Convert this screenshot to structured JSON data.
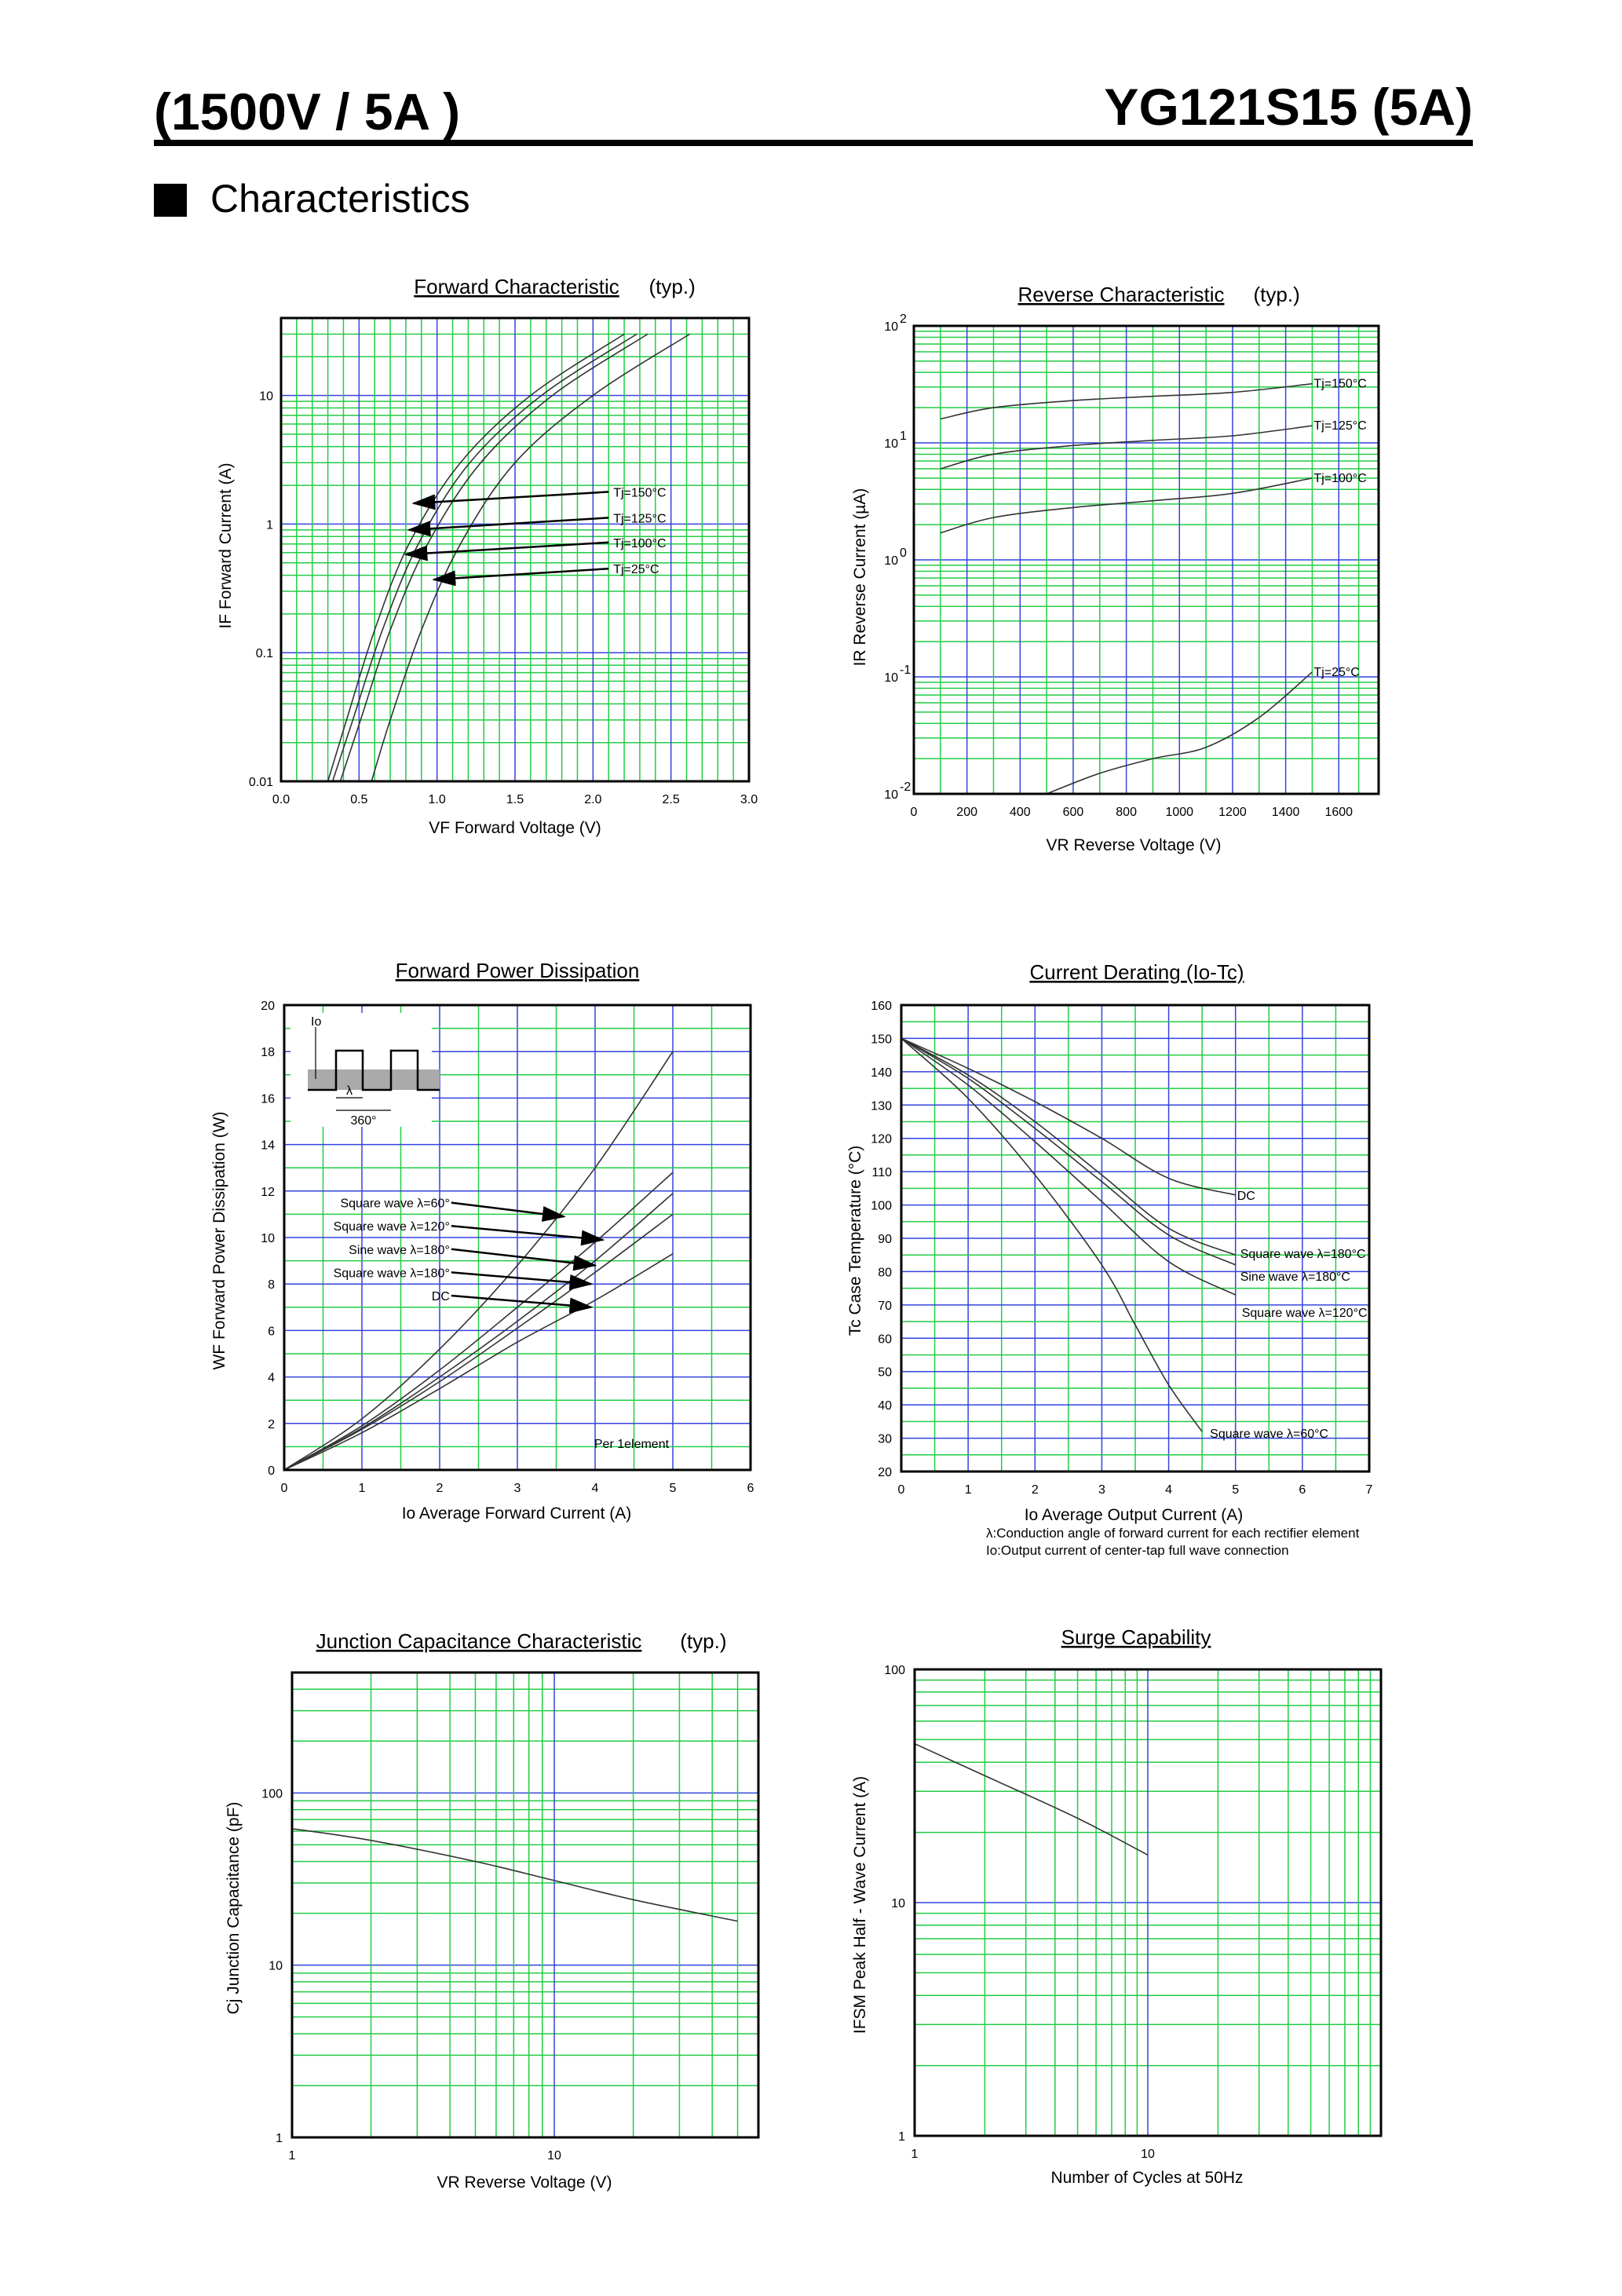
{
  "header": {
    "rating": "(1500V / 5A )",
    "part_number": "YG121S15 (5A)",
    "section_title": "Characteristics"
  },
  "colors": {
    "grid_major": "#3344dd",
    "grid_minor": "#22cc44",
    "curve": "#333333",
    "frame": "#000000"
  },
  "chart_data": [
    {
      "id": "forward",
      "type": "line",
      "title": "Forward Characteristic",
      "title_suffix": "(typ.)",
      "xlabel": "VF   Forward Voltage  (V)",
      "ylabel": "IF   Forward Current  (A)",
      "xscale": "linear",
      "yscale": "log",
      "xlim": [
        0,
        3.0
      ],
      "ylim": [
        0.01,
        40
      ],
      "xticks": [
        0,
        0.5,
        1.0,
        1.5,
        2.0,
        2.5,
        3.0
      ],
      "xtick_labels": [
        "0.0",
        "0.5",
        "1.0",
        "1.5",
        "2.0",
        "2.5",
        "3.0"
      ],
      "yticks": [
        0.01,
        0.1,
        1,
        10
      ],
      "ytick_labels": [
        "0.01",
        "0.1",
        "1",
        "10"
      ],
      "series": [
        {
          "name": "Tj=150°C",
          "x": [
            0.3,
            0.42,
            0.6,
            0.82,
            1.15,
            1.6,
            2.2
          ],
          "y": [
            0.01,
            0.03,
            0.15,
            0.7,
            3,
            10,
            30
          ]
        },
        {
          "name": "Tj=125°C",
          "x": [
            0.33,
            0.46,
            0.65,
            0.88,
            1.21,
            1.67,
            2.28
          ],
          "y": [
            0.01,
            0.03,
            0.15,
            0.7,
            3,
            10,
            30
          ]
        },
        {
          "name": "Tj=100°C",
          "x": [
            0.38,
            0.51,
            0.7,
            0.94,
            1.28,
            1.74,
            2.35
          ],
          "y": [
            0.01,
            0.03,
            0.15,
            0.7,
            3,
            10,
            30
          ]
        },
        {
          "name": "Tj=25°C",
          "x": [
            0.58,
            0.7,
            0.9,
            1.15,
            1.5,
            2.0,
            2.62
          ],
          "y": [
            0.01,
            0.03,
            0.15,
            0.7,
            3,
            10,
            30
          ]
        }
      ],
      "annotations": [
        {
          "text": "Tj=150°C",
          "from": [
            2.1,
            1.78
          ],
          "to": [
            0.85,
            1.45
          ]
        },
        {
          "text": "Tj=125°C",
          "from": [
            2.1,
            1.12
          ],
          "to": [
            0.82,
            0.9
          ]
        },
        {
          "text": "Tj=100°C",
          "from": [
            2.1,
            0.72
          ],
          "to": [
            0.8,
            0.58
          ]
        },
        {
          "text": "Tj=25°C",
          "from": [
            2.1,
            0.45
          ],
          "to": [
            0.98,
            0.37
          ]
        }
      ],
      "grid": true
    },
    {
      "id": "reverse",
      "type": "line",
      "title": "Reverse Characteristic",
      "title_suffix": "(typ.)",
      "xlabel": "VR   Reverse Voltage    (V)",
      "ylabel": "IR   Reverse Current  (µA)",
      "xscale": "linear",
      "yscale": "log",
      "xlim": [
        0,
        1750
      ],
      "ylim": [
        0.01,
        100
      ],
      "xticks": [
        0,
        200,
        400,
        600,
        800,
        1000,
        1200,
        1400,
        1600
      ],
      "xtick_labels": [
        "0",
        "200",
        "400",
        "600",
        "800",
        "1000",
        "1200",
        "1400",
        "1600"
      ],
      "yticks": [
        0.01,
        0.1,
        1,
        10,
        100
      ],
      "ytick_labels_base": [
        "10",
        "10",
        "10",
        "10",
        "10"
      ],
      "ytick_labels_exp": [
        "-2",
        "-1",
        "0",
        "1",
        "2"
      ],
      "series": [
        {
          "name": "Tj=150°C",
          "x": [
            100,
            300,
            600,
            900,
            1200,
            1500
          ],
          "y": [
            16,
            20,
            23,
            25,
            27,
            32
          ]
        },
        {
          "name": "Tj=125°C",
          "x": [
            100,
            300,
            600,
            900,
            1200,
            1500
          ],
          "y": [
            6,
            8,
            9.5,
            10.5,
            11.5,
            14
          ]
        },
        {
          "name": "Tj=100°C",
          "x": [
            100,
            300,
            600,
            900,
            1200,
            1500
          ],
          "y": [
            1.7,
            2.3,
            2.8,
            3.2,
            3.7,
            5
          ]
        },
        {
          "name": "Tj=25°C",
          "x": [
            500,
            700,
            900,
            1100,
            1300,
            1500
          ],
          "y": [
            0.01,
            0.015,
            0.02,
            0.025,
            0.045,
            0.11
          ]
        }
      ],
      "labels": [
        "Tj=150°C",
        "Tj=125°C",
        "Tj=100°C",
        "Tj=25°C"
      ],
      "grid": true
    },
    {
      "id": "power",
      "type": "line",
      "title": "Forward Power Dissipation",
      "xlabel": "Io    Average Forward Current      (A)",
      "ylabel": "WF    Forward Power Dissipation    (W)",
      "xscale": "linear",
      "yscale": "linear",
      "xlim": [
        0,
        6
      ],
      "ylim": [
        0,
        20
      ],
      "xticks": [
        0,
        1,
        2,
        3,
        4,
        5,
        6
      ],
      "yticks": [
        0,
        2,
        4,
        6,
        8,
        10,
        12,
        14,
        16,
        18,
        20
      ],
      "series": [
        {
          "name": "Square wave λ=60°",
          "x": [
            0,
            1,
            2,
            3,
            4,
            5
          ],
          "y": [
            0,
            2.2,
            5.2,
            8.8,
            13,
            18
          ]
        },
        {
          "name": "Square wave λ=120°",
          "x": [
            0,
            1,
            2,
            3,
            4,
            5
          ],
          "y": [
            0,
            1.9,
            4.3,
            7,
            9.8,
            12.8
          ]
        },
        {
          "name": "Sine wave λ=180°",
          "x": [
            0,
            1,
            2,
            3,
            4,
            5
          ],
          "y": [
            0,
            1.8,
            4,
            6.4,
            9,
            11.9
          ]
        },
        {
          "name": "Square wave λ=180°",
          "x": [
            0,
            1,
            2,
            3,
            4,
            5
          ],
          "y": [
            0,
            1.75,
            3.8,
            6.1,
            8.5,
            11
          ]
        },
        {
          "name": "DC",
          "x": [
            0,
            1,
            2,
            3,
            4,
            5
          ],
          "y": [
            0,
            1.6,
            3.5,
            5.5,
            7.3,
            9.3
          ]
        }
      ],
      "annotations": [
        {
          "text": "Square wave λ=60°",
          "from": [
            2.15,
            11.5
          ],
          "to": [
            3.6,
            10.9
          ]
        },
        {
          "text": "Square wave λ=120°",
          "from": [
            2.15,
            10.5
          ],
          "to": [
            4.1,
            9.9
          ]
        },
        {
          "text": "Sine wave λ=180°",
          "from": [
            2.15,
            9.5
          ],
          "to": [
            4.0,
            8.8
          ]
        },
        {
          "text": "Square wave λ=180°",
          "from": [
            2.15,
            8.5
          ],
          "to": [
            3.95,
            8.0
          ]
        },
        {
          "text": "DC",
          "from": [
            2.15,
            7.5
          ],
          "to": [
            3.95,
            7.0
          ]
        }
      ],
      "inset": {
        "io_label": "Io",
        "lambda_label": "λ",
        "period_label": "360°"
      },
      "note": "Per 1element",
      "grid": true
    },
    {
      "id": "derating",
      "type": "line",
      "title": "Current Derating  (Io-Tc)",
      "xlabel": "Io    Average Output Current     (A)",
      "ylabel": "Tc    Case Temperature      (°C)",
      "xscale": "linear",
      "yscale": "linear",
      "xlim": [
        0,
        7
      ],
      "ylim": [
        20,
        160
      ],
      "xticks": [
        0,
        1,
        2,
        3,
        4,
        5,
        6,
        7
      ],
      "yticks": [
        20,
        30,
        40,
        50,
        60,
        70,
        80,
        90,
        100,
        110,
        120,
        130,
        140,
        150,
        160
      ],
      "series": [
        {
          "name": "DC",
          "x": [
            0,
            1,
            2,
            3,
            4,
            5
          ],
          "y": [
            150,
            141,
            131,
            120,
            108,
            103
          ]
        },
        {
          "name": "Square wave λ=180°",
          "x": [
            0,
            1,
            2,
            3,
            4,
            5
          ],
          "y": [
            150,
            139,
            125,
            109,
            93,
            85
          ]
        },
        {
          "name": "Sine wave λ=180°",
          "x": [
            0,
            1,
            2,
            3,
            4,
            5
          ],
          "y": [
            150,
            138,
            123,
            107,
            91,
            82
          ]
        },
        {
          "name": "Square wave λ=120°",
          "x": [
            0,
            1,
            2,
            3,
            4,
            5
          ],
          "y": [
            150,
            136,
            119,
            101,
            83,
            73
          ]
        },
        {
          "name": "Square wave λ=60°",
          "x": [
            0,
            1,
            2,
            3,
            3.5,
            4,
            4.5
          ],
          "y": [
            150,
            132,
            109,
            82,
            64,
            46,
            32
          ]
        }
      ],
      "labels": [
        "DC",
        "Square wave  λ=180°C",
        "Sine wave  λ=180°C",
        "Square wave  λ=120°C",
        "Square wave  λ=60°C"
      ],
      "notes": [
        "λ:Conduction angle of forward current for each rectifier element",
        "Io:Output current of center-tap full wave connection"
      ],
      "grid": true
    },
    {
      "id": "capacitance",
      "type": "line",
      "title": "Junction Capacitance Characteristic",
      "title_suffix": "(typ.)",
      "xlabel": "VR    Reverse Voltage    (V)",
      "ylabel": "Cj    Junction Capacitance   (pF)",
      "xscale": "log",
      "yscale": "log",
      "xlim": [
        1,
        60
      ],
      "ylim": [
        1,
        500
      ],
      "xticks": [
        1,
        10
      ],
      "yticks": [
        1,
        10,
        100
      ],
      "series": [
        {
          "name": "",
          "x": [
            1,
            2,
            5,
            10,
            20,
            50
          ],
          "y": [
            62,
            53,
            40,
            31,
            24,
            18
          ]
        }
      ],
      "grid": true
    },
    {
      "id": "surge",
      "type": "line",
      "title": "Surge Capability",
      "xlabel": "Number of Cycles at 50Hz",
      "ylabel": "IFSM    Peak Half - Wave Current    (A)",
      "xscale": "log",
      "yscale": "log",
      "xlim": [
        1,
        100
      ],
      "ylim": [
        1,
        100
      ],
      "xticks": [
        1,
        10
      ],
      "yticks": [
        1,
        10,
        100
      ],
      "series": [
        {
          "name": "",
          "x": [
            1,
            2,
            5,
            10
          ],
          "y": [
            48,
            35,
            23,
            16
          ]
        }
      ],
      "grid": true
    }
  ]
}
